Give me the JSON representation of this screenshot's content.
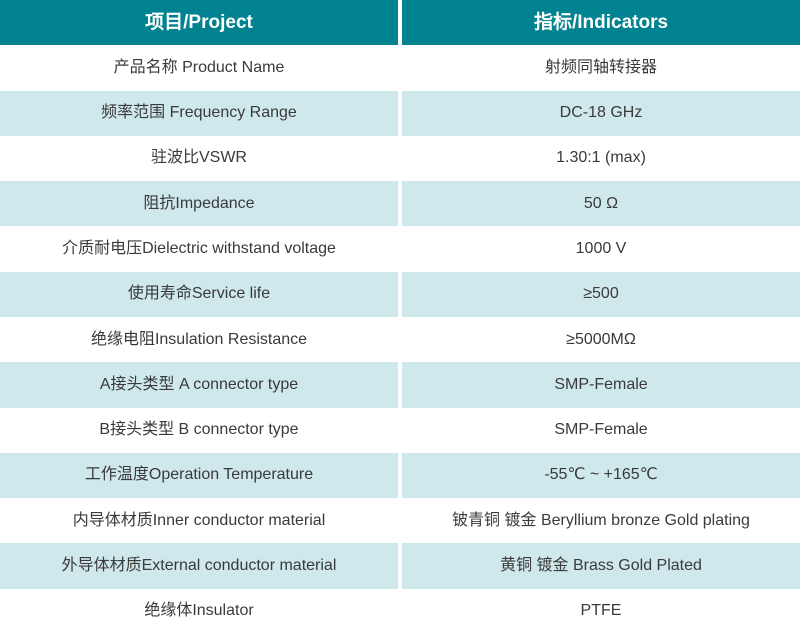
{
  "table": {
    "title": "product-specification-table",
    "header": {
      "project": "项目/Project",
      "indicators": "指标/Indicators"
    },
    "rows": [
      {
        "project": "产品名称 Product Name",
        "indicator": "射频同轴转接器"
      },
      {
        "project": "频率范围 Frequency Range",
        "indicator": "DC-18 GHz"
      },
      {
        "project": "驻波比VSWR",
        "indicator": "1.30:1 (max)"
      },
      {
        "project": "阻抗Impedance",
        "indicator": "50 Ω"
      },
      {
        "project": "介质耐电压Dielectric withstand voltage",
        "indicator": "1000 V"
      },
      {
        "project": "使用寿命Service life",
        "indicator": "≥500"
      },
      {
        "project": "绝缘电阻Insulation Resistance",
        "indicator": "≥5000MΩ"
      },
      {
        "project": "A接头类型 A connector type",
        "indicator": "SMP-Female"
      },
      {
        "project": "B接头类型 B connector type",
        "indicator": "SMP-Female"
      },
      {
        "project": "工作温度Operation Temperature",
        "indicator": "-55℃ ~ +165℃"
      },
      {
        "project": "内导体材质Inner conductor material",
        "indicator": "铍青铜 镀金 Beryllium bronze Gold plating"
      },
      {
        "project": "外导体材质External conductor material",
        "indicator": "黄铜 镀金 Brass Gold Plated"
      },
      {
        "project": "绝缘体Insulator",
        "indicator": "PTFE"
      }
    ],
    "colors": {
      "header_bg": "#008290",
      "header_text": "#ffffff",
      "row_bg": "#ffffff",
      "row_alt_bg": "#cee8eb",
      "cell_text": "#3a3a3a",
      "divider": "#ffffff"
    }
  }
}
